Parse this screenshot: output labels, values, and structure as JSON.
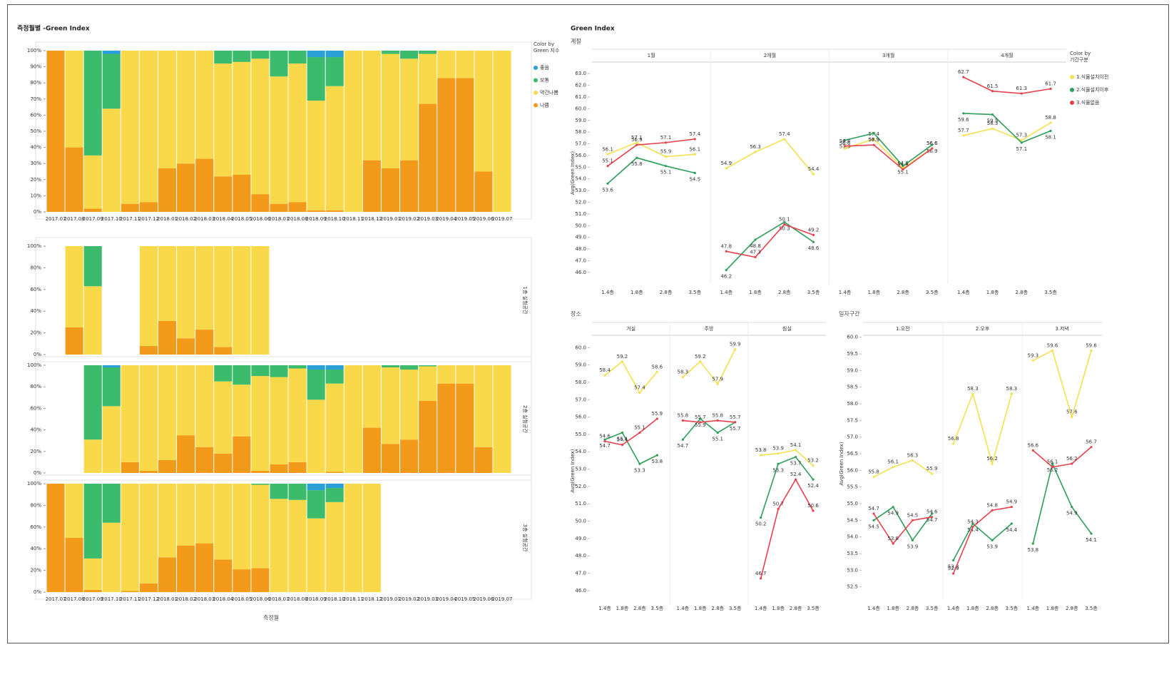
{
  "chart_data": [
    {
      "type": "bar",
      "title": "측정월별 -Green Index",
      "legend_title": [
        "Color by",
        "Green 지수"
      ],
      "categories": [
        "2017.07",
        "2017.08",
        "2017.09",
        "2017.10",
        "2017.11",
        "2017.12",
        "2018.01",
        "2018.02",
        "2018.03",
        "2018.04",
        "2018.05",
        "2018.06",
        "2018.07",
        "2018.08",
        "2018.09",
        "2018.10",
        "2018.11",
        "2018.12",
        "2019.01",
        "2019.02",
        "2019.03",
        "2019.04",
        "2019.05",
        "2019.06",
        "2019.07"
      ],
      "series": [
        {
          "name": "좋음",
          "color": "#2a9fd8",
          "values": [
            0,
            0,
            0,
            2,
            0,
            0,
            0,
            0,
            0,
            0,
            0,
            0,
            0,
            0,
            4,
            4,
            0,
            0,
            0,
            0,
            0,
            0,
            0,
            0,
            0
          ]
        },
        {
          "name": "보통",
          "color": "#3dbb6c",
          "values": [
            0,
            0,
            65,
            34,
            0,
            0,
            0,
            0,
            0,
            8,
            7,
            5,
            16,
            8,
            27,
            18,
            0,
            0,
            2,
            5,
            2,
            0,
            0,
            0,
            0
          ]
        },
        {
          "name": "약간나쁨",
          "color": "#f9d949",
          "values": [
            0,
            60,
            33,
            64,
            95,
            94,
            73,
            70,
            67,
            70,
            70,
            84,
            79,
            86,
            68,
            77,
            100,
            68,
            71,
            63,
            31,
            17,
            17,
            75,
            100
          ]
        },
        {
          "name": "나쁨",
          "color": "#f39a1a",
          "values": [
            100,
            40,
            2,
            0,
            5,
            6,
            27,
            30,
            33,
            22,
            23,
            11,
            5,
            6,
            1,
            1,
            0,
            32,
            27,
            32,
            67,
            83,
            83,
            25,
            0
          ]
        }
      ],
      "ylim": [
        0,
        100
      ],
      "yticks": [
        {
          "value": 0,
          "label": "0%"
        },
        {
          "value": 10,
          "label": "10%"
        },
        {
          "value": 20,
          "label": "20%"
        },
        {
          "value": 30,
          "label": "30%"
        },
        {
          "value": 40,
          "label": "40%"
        },
        {
          "value": 50,
          "label": "50%"
        },
        {
          "value": 60,
          "label": "60%"
        },
        {
          "value": 70,
          "label": "70%"
        },
        {
          "value": 80,
          "label": "80%"
        },
        {
          "value": 90,
          "label": "90%"
        },
        {
          "value": 100,
          "label": "100%"
        }
      ]
    },
    {
      "type": "bar",
      "xlabel": "측정월",
      "categories": [
        "2017.07",
        "2017.08",
        "2017.09",
        "2017.10",
        "2017.11",
        "2017.12",
        "2018.01",
        "2018.02",
        "2018.03",
        "2018.04",
        "2018.05",
        "2018.06",
        "2018.07",
        "2018.08",
        "2018.09",
        "2018.10",
        "2018.11",
        "2018.12",
        "2019.01",
        "2019.02",
        "2019.03",
        "2019.04",
        "2019.05",
        "2019.06",
        "2019.07"
      ],
      "colors": [
        "#2a9fd8",
        "#3dbb6c",
        "#f9d949",
        "#f39a1a"
      ],
      "ylim": [
        0,
        100
      ],
      "yticks": [
        {
          "value": 0,
          "label": "0%"
        },
        {
          "value": 20,
          "label": "20%"
        },
        {
          "value": 40,
          "label": "40%"
        },
        {
          "value": 60,
          "label": "60%"
        },
        {
          "value": 80,
          "label": "80%"
        },
        {
          "value": 100,
          "label": "100%"
        }
      ],
      "facets": [
        {
          "label": "1층 실험공간",
          "values": [
            [
              null,
              0,
              0,
              null,
              null,
              0,
              0,
              0,
              0,
              0,
              0,
              0,
              null,
              null,
              null,
              null,
              null,
              null,
              null,
              null,
              null,
              null,
              null,
              null,
              null
            ],
            [
              null,
              0,
              37,
              null,
              null,
              0,
              0,
              0,
              0,
              0,
              0,
              0,
              null,
              null,
              null,
              null,
              null,
              null,
              null,
              null,
              null,
              null,
              null,
              null,
              null
            ],
            [
              null,
              75,
              63,
              null,
              null,
              92,
              69,
              85,
              77,
              93,
              100,
              100,
              null,
              null,
              null,
              null,
              null,
              null,
              null,
              null,
              null,
              null,
              null,
              null,
              null
            ],
            [
              null,
              25,
              0,
              null,
              null,
              8,
              31,
              15,
              23,
              7,
              0,
              0,
              null,
              null,
              null,
              null,
              null,
              null,
              null,
              null,
              null,
              null,
              null,
              null,
              null
            ]
          ]
        },
        {
          "label": "2층 실험공간",
          "values": [
            [
              null,
              null,
              0,
              2,
              0,
              0,
              0,
              0,
              0,
              0,
              0,
              0,
              0,
              0,
              4,
              4,
              0,
              0,
              0,
              0,
              0,
              0,
              0,
              0,
              0
            ],
            [
              null,
              null,
              69,
              36,
              0,
              0,
              0,
              0,
              0,
              15,
              18,
              10,
              11,
              3,
              28,
              13,
              0,
              0,
              2,
              4,
              1,
              0,
              0,
              0,
              0
            ],
            [
              null,
              null,
              31,
              62,
              90,
              98,
              88,
              65,
              76,
              67,
              48,
              88,
              81,
              87,
              68,
              82,
              100,
              58,
              71,
              65,
              32,
              17,
              17,
              76,
              100
            ],
            [
              null,
              null,
              0,
              0,
              10,
              2,
              12,
              35,
              24,
              18,
              34,
              2,
              8,
              10,
              0,
              1,
              0,
              42,
              27,
              31,
              67,
              83,
              83,
              24,
              0
            ]
          ]
        },
        {
          "label": "3층 실험공간",
          "values": [
            [
              0,
              0,
              0,
              0,
              0,
              0,
              0,
              0,
              0,
              0,
              0,
              0,
              0,
              0,
              6,
              4,
              0,
              0,
              null,
              null,
              null,
              null,
              null,
              null,
              null
            ],
            [
              0,
              0,
              69,
              36,
              0,
              0,
              0,
              0,
              0,
              0,
              0,
              1,
              14,
              15,
              26,
              13,
              0,
              0,
              null,
              null,
              null,
              null,
              null,
              null,
              null
            ],
            [
              0,
              50,
              29,
              64,
              99,
              92,
              68,
              57,
              55,
              70,
              79,
              77,
              86,
              85,
              68,
              83,
              100,
              100,
              null,
              null,
              null,
              null,
              null,
              null,
              null
            ],
            [
              100,
              50,
              2,
              0,
              1,
              8,
              32,
              43,
              45,
              30,
              21,
              22,
              0,
              0,
              0,
              0,
              0,
              0,
              null,
              null,
              null,
              null,
              null,
              null,
              null
            ]
          ]
        }
      ]
    },
    {
      "type": "line",
      "title": "Green Index",
      "facet_title": "계절",
      "ylabel": "Avg(Green Index)",
      "legend_title": [
        "Color by",
        "기간구분"
      ],
      "series": [
        {
          "name": "1.식물설치이전",
          "color": "#f5e050"
        },
        {
          "name": "2.식물설치이후",
          "color": "#2e9e5b"
        },
        {
          "name": "3.식물없음",
          "color": "#e8414e"
        }
      ],
      "categories": [
        "1.4층",
        "1.8층",
        "2.8층",
        "3.5층"
      ],
      "ylim": [
        45.5,
        63.5
      ],
      "yticks": [
        {
          "value": 46,
          "label": "46.0"
        },
        {
          "value": 47,
          "label": "47.0"
        },
        {
          "value": 48,
          "label": "48.0"
        },
        {
          "value": 49,
          "label": "49.0"
        },
        {
          "value": 50,
          "label": "50.0"
        },
        {
          "value": 51,
          "label": "51.0"
        },
        {
          "value": 52,
          "label": "52.0"
        },
        {
          "value": 53,
          "label": "53.0"
        },
        {
          "value": 54,
          "label": "54.0"
        },
        {
          "value": 55,
          "label": "55.0"
        },
        {
          "value": 56,
          "label": "56.0"
        },
        {
          "value": 57,
          "label": "57.0"
        },
        {
          "value": 58,
          "label": "58.0"
        },
        {
          "value": 59,
          "label": "59.0"
        },
        {
          "value": 60,
          "label": "60.0"
        },
        {
          "value": 61,
          "label": "61.0"
        },
        {
          "value": 62,
          "label": "62.0"
        },
        {
          "value": 63,
          "label": "63.0"
        }
      ],
      "facets": [
        {
          "name": "1월",
          "values": [
            [
              56.1,
              57.1,
              55.9,
              56.1
            ],
            [
              53.6,
              55.8,
              55.1,
              54.5
            ],
            [
              55.1,
              56.9,
              57.1,
              57.4
            ]
          ]
        },
        {
          "name": "2개월",
          "values": [
            [
              54.9,
              56.3,
              57.4,
              54.4
            ],
            [
              46.2,
              48.8,
              50.3,
              48.6
            ],
            [
              47.8,
              47.3,
              50.1,
              49.2
            ]
          ]
        },
        {
          "name": "3개월",
          "values": [
            [
              56.6,
              57.4,
              54.9,
              56.6
            ],
            [
              57.3,
              57.9,
              55.1,
              56.9
            ],
            [
              56.8,
              56.9,
              54.8,
              56.6
            ]
          ]
        },
        {
          "name": "4개월",
          "values": [
            [
              57.7,
              58.3,
              57.3,
              58.8
            ],
            [
              59.6,
              59.5,
              57.1,
              58.1
            ],
            [
              62.7,
              61.5,
              61.3,
              61.7
            ]
          ]
        }
      ]
    },
    {
      "type": "line",
      "facet_title": "장소",
      "ylabel": "Avg(Green Index)",
      "colors": [
        "#f5e050",
        "#2e9e5b",
        "#e8414e"
      ],
      "categories": [
        "1.4층",
        "1.8층",
        "2.8층",
        "3.5층"
      ],
      "ylim": [
        45.5,
        60.3
      ],
      "yticks": [
        {
          "value": 46,
          "label": "46.0"
        },
        {
          "value": 47,
          "label": "47.0"
        },
        {
          "value": 48,
          "label": "48.0"
        },
        {
          "value": 49,
          "label": "49.0"
        },
        {
          "value": 50,
          "label": "50.0"
        },
        {
          "value": 51,
          "label": "51.0"
        },
        {
          "value": 52,
          "label": "52.0"
        },
        {
          "value": 53,
          "label": "53.0"
        },
        {
          "value": 54,
          "label": "54.0"
        },
        {
          "value": 55,
          "label": "55.0"
        },
        {
          "value": 56,
          "label": "56.0"
        },
        {
          "value": 57,
          "label": "57.0"
        },
        {
          "value": 58,
          "label": "58.0"
        },
        {
          "value": 59,
          "label": "59.0"
        },
        {
          "value": 60,
          "label": "60.0"
        }
      ],
      "facets": [
        {
          "name": "거실",
          "values": [
            [
              58.4,
              59.2,
              57.4,
              58.6
            ],
            [
              54.7,
              55.1,
              53.3,
              53.8
            ],
            [
              54.6,
              54.4,
              55.1,
              55.9
            ]
          ]
        },
        {
          "name": "주방",
          "values": [
            [
              58.3,
              59.2,
              57.9,
              59.9
            ],
            [
              54.7,
              55.9,
              55.1,
              55.7
            ],
            [
              55.8,
              55.7,
              55.8,
              55.7
            ]
          ]
        },
        {
          "name": "침실",
          "values": [
            [
              53.8,
              53.9,
              54.1,
              53.2
            ],
            [
              50.2,
              53.3,
              53.7,
              52.4
            ],
            [
              46.7,
              50.7,
              52.4,
              50.6
            ]
          ]
        }
      ]
    },
    {
      "type": "line",
      "facet_title": "일자구간",
      "ylabel": "Avg(Green Index)",
      "colors": [
        "#f5e050",
        "#2e9e5b",
        "#e8414e"
      ],
      "categories": [
        "1.4층",
        "1.8층",
        "2.8층",
        "3.5층"
      ],
      "ylim": [
        52.3,
        60.1
      ],
      "yticks": [
        52.5,
        {
          "value": 53,
          "label": "53.0"
        },
        53.5,
        {
          "value": 54,
          "label": "54.0"
        },
        54.5,
        {
          "value": 55,
          "label": "55.0"
        },
        55.5,
        {
          "value": 56,
          "label": "56.0"
        },
        56.5,
        {
          "value": 57,
          "label": "57.0"
        },
        57.5,
        {
          "value": 58,
          "label": "58.0"
        },
        58.5,
        {
          "value": 59,
          "label": "59.0"
        },
        59.5,
        {
          "value": 60,
          "label": "60.0"
        }
      ],
      "facets": [
        {
          "name": "1.오전",
          "values": [
            [
              55.8,
              56.1,
              56.3,
              55.9
            ],
            [
              54.5,
              54.9,
              53.9,
              54.7
            ],
            [
              54.7,
              53.8,
              54.5,
              54.6
            ]
          ]
        },
        {
          "name": "2.오후",
          "values": [
            [
              56.8,
              58.3,
              56.2,
              58.3
            ],
            [
              53.3,
              54.4,
              53.9,
              54.4
            ],
            [
              52.9,
              54.3,
              54.8,
              54.9
            ]
          ]
        },
        {
          "name": "3.저녁",
          "values": [
            [
              59.3,
              59.6,
              57.6,
              59.6
            ],
            [
              53.8,
              56.2,
              54.9,
              54.1
            ],
            [
              56.6,
              56.1,
              56.2,
              56.7
            ]
          ]
        }
      ]
    }
  ]
}
